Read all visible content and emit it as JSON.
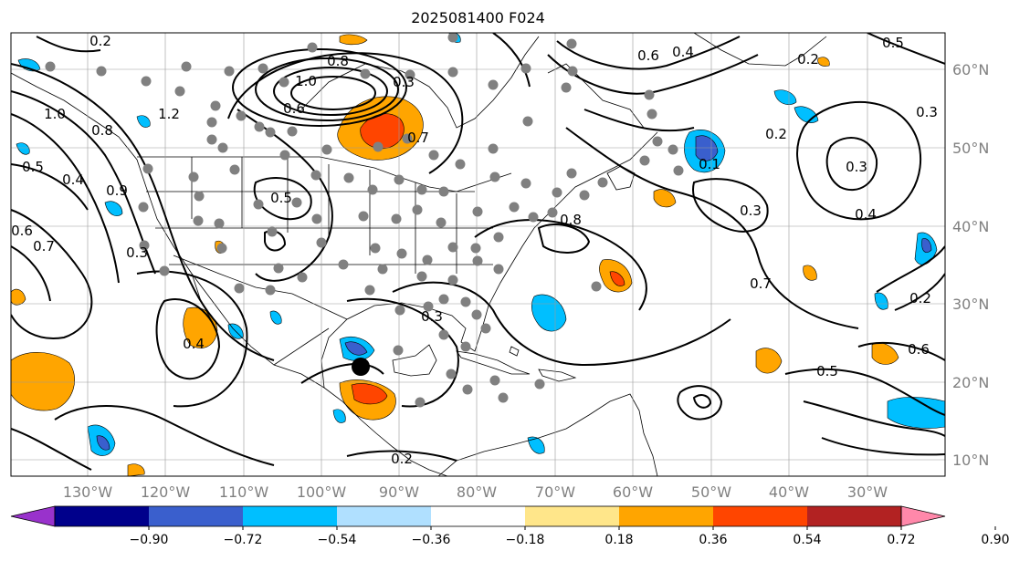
{
  "title": "2025081400 F024",
  "map": {
    "lon_labels": [
      "130°W",
      "120°W",
      "110°W",
      "100°W",
      "90°W",
      "80°W",
      "70°W",
      "60°W",
      "50°W",
      "40°W",
      "30°W"
    ],
    "lat_labels": [
      "60°N",
      "50°N",
      "40°N",
      "30°N",
      "20°N",
      "10°N"
    ],
    "contour_labels": [
      "0.2",
      "0.8",
      "1.0",
      "1.2",
      "0.6",
      "0.3",
      "0.7",
      "0.5",
      "0.4",
      "0.9",
      "1.0",
      "0.8",
      "0.6",
      "0.7",
      "0.3",
      "0.5",
      "0.4",
      "0.2",
      "0.3",
      "0.8",
      "0.6",
      "0.4",
      "0.2",
      "0.5",
      "0.3",
      "0.2",
      "0.3",
      "0.4",
      "0.7",
      "0.1",
      "0.3",
      "0.2",
      "0.6",
      "0.5"
    ],
    "colors": {
      "coast": "#000000",
      "grid": "#999999",
      "contour": "#000000",
      "station": "#808080",
      "center_marker": "#000000"
    }
  },
  "colorbar": {
    "levels": [
      "−0.90",
      "−0.72",
      "−0.54",
      "−0.36",
      "−0.18",
      "0.18",
      "0.36",
      "0.54",
      "0.72",
      "0.90"
    ],
    "colors": [
      "#9932cc",
      "#00008b",
      "#3a5fcd",
      "#00bfff",
      "#b0e0ff",
      "#ffffff",
      "#ffe68a",
      "#ffa500",
      "#ff4500",
      "#b22222",
      "#ff88aa"
    ]
  }
}
